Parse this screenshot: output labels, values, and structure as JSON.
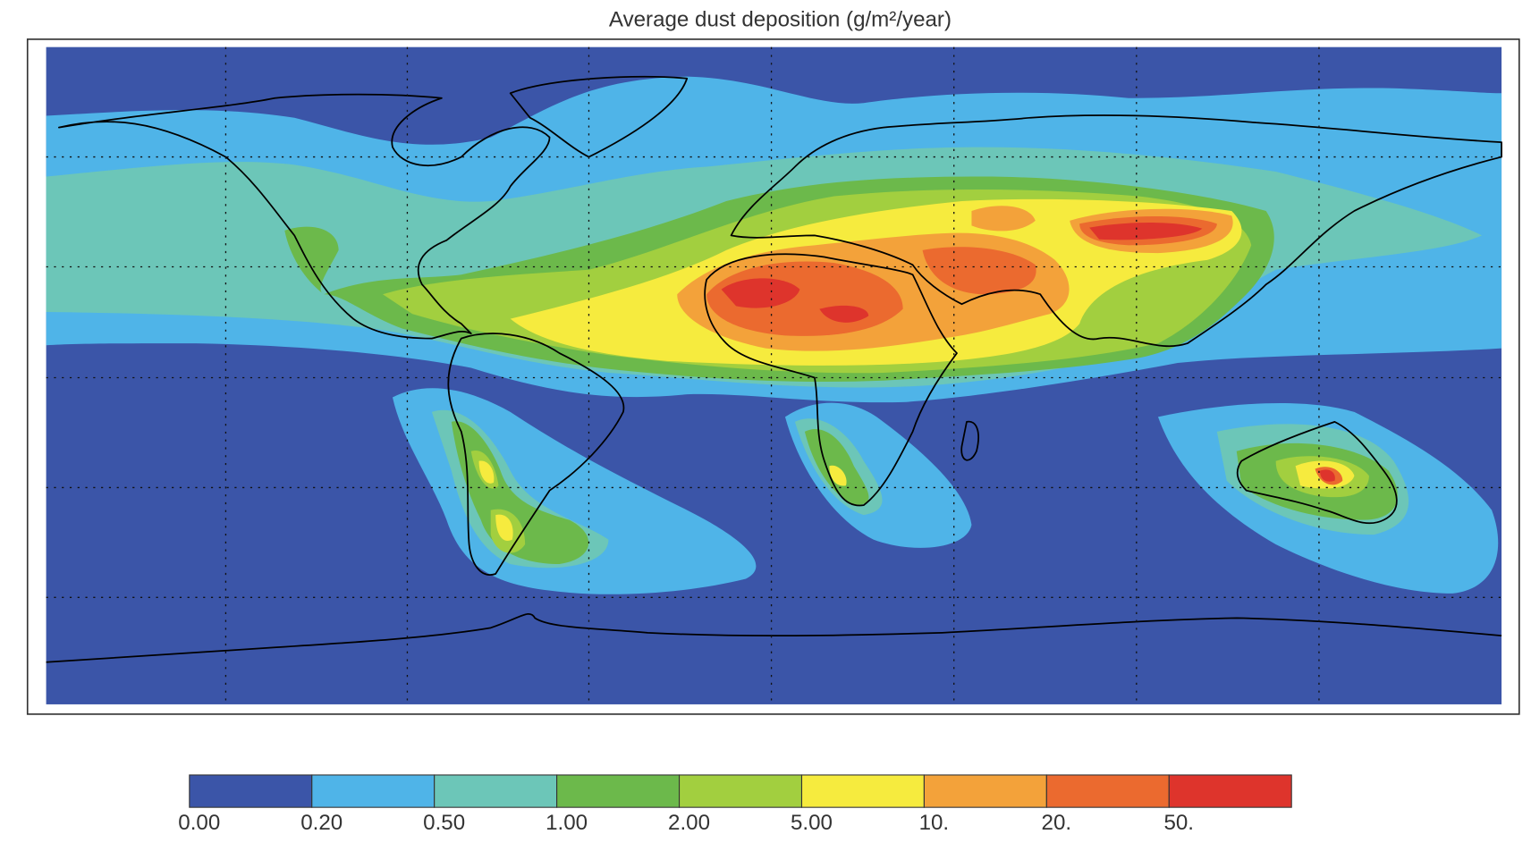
{
  "title": "Average dust deposition (g/m²/year)",
  "colorbar": {
    "ticks": [
      {
        "value": 0,
        "label": "0.00"
      },
      {
        "value": 0.2,
        "label": "0.20"
      },
      {
        "value": 0.5,
        "label": "0.50"
      },
      {
        "value": 1,
        "label": "1.00"
      },
      {
        "value": 2,
        "label": "2.00"
      },
      {
        "value": 5,
        "label": "5.00"
      },
      {
        "value": 10,
        "label": "10."
      },
      {
        "value": 20,
        "label": "20."
      },
      {
        "value": 50,
        "label": "50."
      }
    ],
    "colors": [
      "#3b55a8",
      "#4fb4e8",
      "#6cc6b8",
      "#6cb94b",
      "#a2cf3f",
      "#f6eb3e",
      "#f3a23a",
      "#eb6a2f",
      "#de342c"
    ]
  }
}
